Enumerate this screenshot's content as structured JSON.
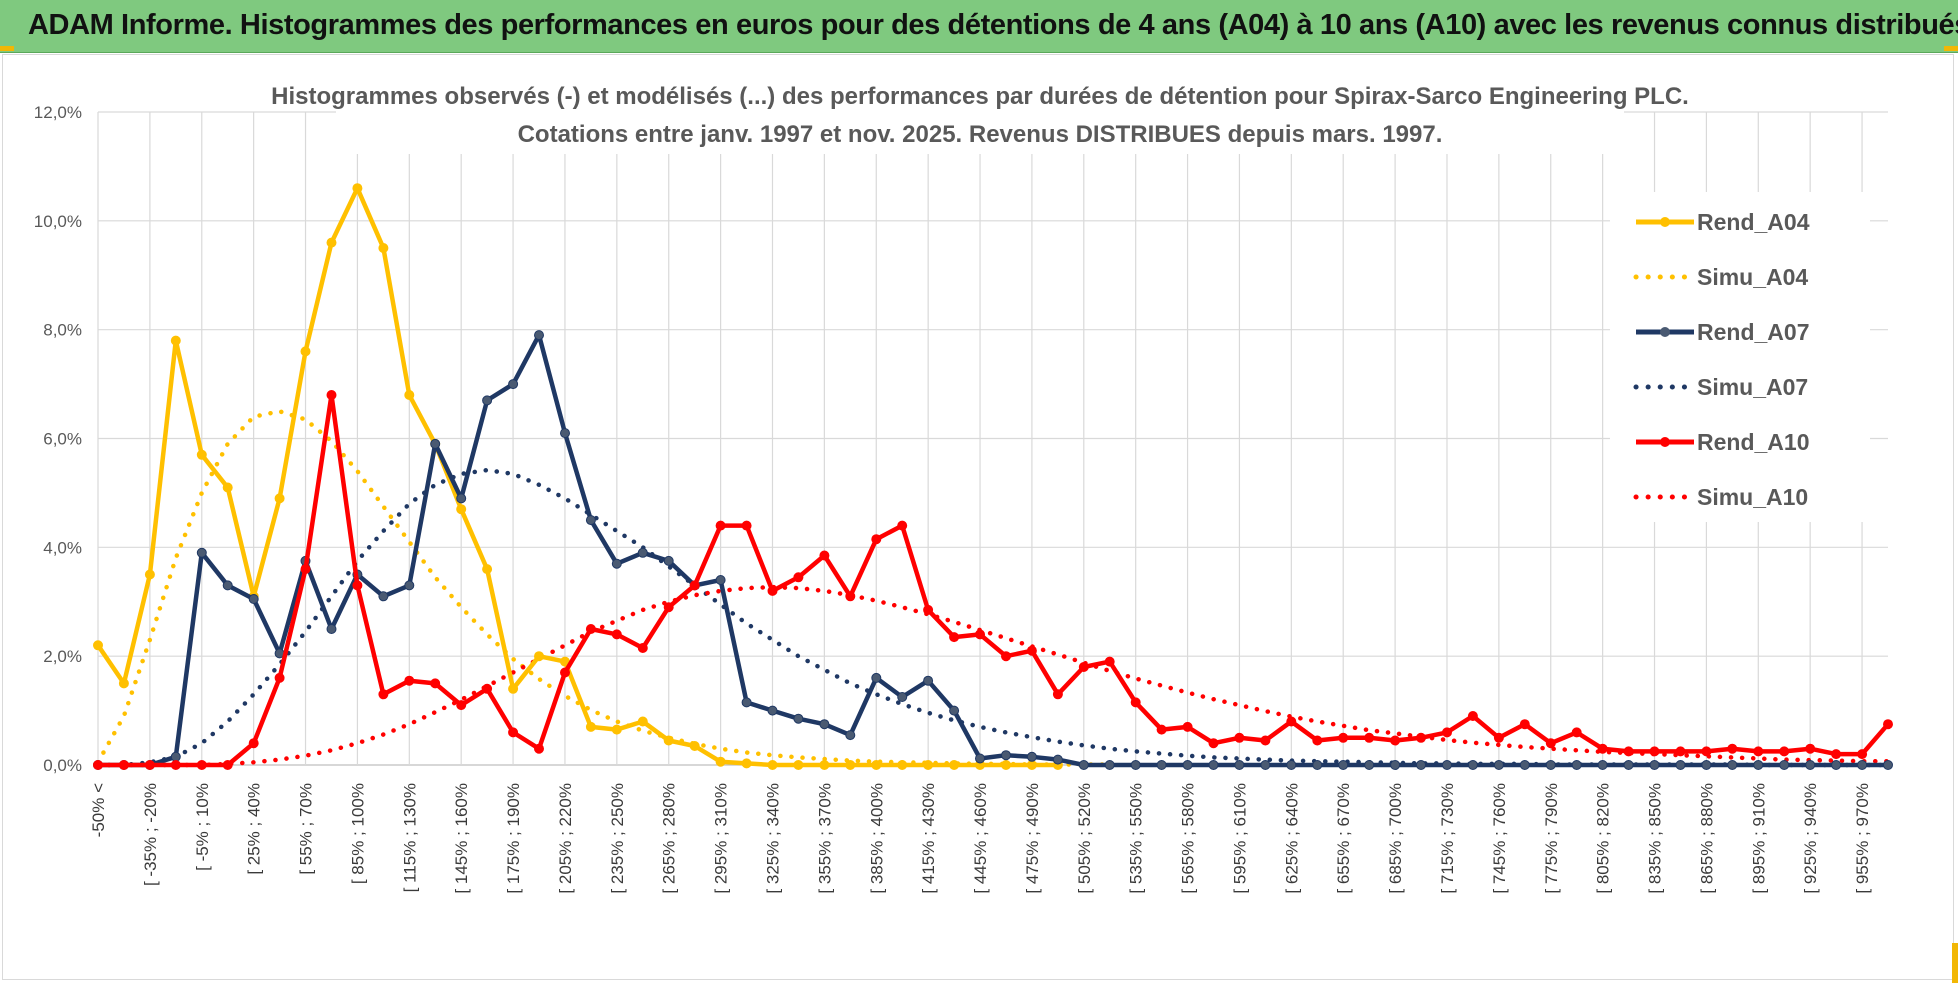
{
  "header": {
    "title": "ADAM Informe. Histogrammes des performances en euros pour des détentions de 4 ans (A04) à 10 ans (A10) avec les revenus connus distribués"
  },
  "chart_data": {
    "type": "line",
    "title": "Histogrammes observés (-) et modélisés (...) des performances par durées de détention pour Spirax-Sarco Engineering PLC.",
    "subtitle": "Cotations entre janv. 1997 et nov. 2025. Revenus DISTRIBUES depuis mars. 1997.",
    "xlabel": "",
    "ylabel": "",
    "ylim": [
      0,
      12
    ],
    "y_ticks": [
      "0,0%",
      "2,0%",
      "4,0%",
      "6,0%",
      "8,0%",
      "10,0%",
      "12,0%"
    ],
    "legend_position": "right",
    "x_labels": [
      "-50% <",
      "[ -35% ; -20%",
      "[ -5% ; 10%",
      "[ 25% ; 40%",
      "[ 55% ; 70%",
      "[ 85% ; 100%",
      "[ 115% ; 130%",
      "[ 145% ; 160%",
      "[ 175% ; 190%",
      "[ 205% ; 220%",
      "[ 235% ; 250%",
      "[ 265% ; 280%",
      "[ 295% ; 310%",
      "[ 325% ; 340%",
      "[ 355% ; 370%",
      "[ 385% ; 400%",
      "[ 415% ; 430%",
      "[ 445% ; 460%",
      "[ 475% ; 490%",
      "[ 505% ; 520%",
      "[ 535% ; 550%",
      "[ 565% ; 580%",
      "[ 595% ; 610%",
      "[ 625% ; 640%",
      "[ 655% ; 670%",
      "[ 685% ; 700%",
      "[ 715% ; 730%",
      "[ 745% ; 760%",
      "[ 775% ; 790%",
      "[ 805% ; 820%",
      "[ 835% ; 850%",
      "[ 865% ; 880%",
      "[ 895% ; 910%",
      "[ 925% ; 940%",
      "[ 955% ; 970%"
    ],
    "series": [
      {
        "name": "Rend_A04",
        "style": "solid",
        "color": "#ffc000",
        "values": [
          2.2,
          1.5,
          3.5,
          7.8,
          5.7,
          5.1,
          3.1,
          4.9,
          7.6,
          9.6,
          10.6,
          9.5,
          6.8,
          5.9,
          4.7,
          3.6,
          1.4,
          2.0,
          1.9,
          0.7,
          0.65,
          0.8,
          0.45,
          0.35,
          0.06,
          0.03,
          0.0,
          0.0,
          0.0,
          0.0,
          0.0,
          0.0,
          0.0,
          0.0,
          0.0,
          0.0,
          0.0,
          0.0
        ]
      },
      {
        "name": "Simu_A04",
        "style": "dotted",
        "color": "#ffc000",
        "values": [
          0.05,
          0.9,
          2.3,
          3.8,
          5.0,
          5.9,
          6.4,
          6.5,
          6.35,
          5.95,
          5.4,
          4.75,
          4.1,
          3.45,
          2.9,
          2.4,
          1.95,
          1.58,
          1.27,
          1.01,
          0.8,
          0.63,
          0.5,
          0.39,
          0.3,
          0.23,
          0.18,
          0.14,
          0.11,
          0.08,
          0.06,
          0.05,
          0.04,
          0.03,
          0.02,
          0.02,
          0.01,
          0.01,
          0.01,
          0.01
        ]
      },
      {
        "name": "Rend_A07",
        "style": "solid",
        "color": "#1f3864",
        "values": [
          0.0,
          0.0,
          0.0,
          0.15,
          3.9,
          3.3,
          3.05,
          2.05,
          3.75,
          2.5,
          3.5,
          3.1,
          3.3,
          5.9,
          4.9,
          6.7,
          7.0,
          7.9,
          6.1,
          4.5,
          3.7,
          3.9,
          3.75,
          3.3,
          3.4,
          1.15,
          1.0,
          0.85,
          0.75,
          0.55,
          1.6,
          1.25,
          1.55,
          1.0,
          0.12,
          0.18,
          0.15,
          0.1,
          0.0,
          0.0,
          0.0,
          0.0,
          0.0,
          0.0,
          0.0,
          0.0,
          0.0,
          0.0,
          0.0,
          0.0,
          0.0,
          0.0,
          0.0,
          0.0,
          0.0,
          0.0,
          0.0,
          0.0,
          0.0,
          0.0,
          0.0,
          0.0,
          0.0,
          0.0,
          0.0,
          0.0,
          0.0,
          0.0,
          0.0,
          0.0
        ]
      },
      {
        "name": "Simu_A07",
        "style": "dotted",
        "color": "#1f3864",
        "values": [
          0.0,
          0.0,
          0.05,
          0.15,
          0.4,
          0.8,
          1.3,
          1.85,
          2.45,
          3.1,
          3.75,
          4.3,
          4.8,
          5.15,
          5.35,
          5.42,
          5.35,
          5.15,
          4.9,
          4.6,
          4.3,
          4.0,
          3.65,
          3.3,
          2.95,
          2.6,
          2.3,
          2.0,
          1.75,
          1.5,
          1.3,
          1.12,
          0.96,
          0.82,
          0.7,
          0.6,
          0.51,
          0.43,
          0.36,
          0.3,
          0.25,
          0.21,
          0.17,
          0.14,
          0.12,
          0.1,
          0.08,
          0.07,
          0.06,
          0.05,
          0.04,
          0.03,
          0.03,
          0.02,
          0.02,
          0.02,
          0.01,
          0.01,
          0.01,
          0.01,
          0.01,
          0.01,
          0.01,
          0.01,
          0.0,
          0.0,
          0.0,
          0.0,
          0.0,
          0.0
        ]
      },
      {
        "name": "Rend_A10",
        "style": "solid",
        "color": "#ff0000",
        "values": [
          0.0,
          0.0,
          0.0,
          0.0,
          0.0,
          0.0,
          0.4,
          1.6,
          3.6,
          6.8,
          3.3,
          1.3,
          1.55,
          1.5,
          1.1,
          1.4,
          0.6,
          0.3,
          1.7,
          2.5,
          2.4,
          2.15,
          2.9,
          3.3,
          4.4,
          4.4,
          3.2,
          3.45,
          3.85,
          3.1,
          4.15,
          4.4,
          2.85,
          2.35,
          2.4,
          2.0,
          2.1,
          1.3,
          1.8,
          1.9,
          1.15,
          0.65,
          0.7,
          0.4,
          0.5,
          0.45,
          0.8,
          0.45,
          0.5,
          0.5,
          0.45,
          0.5,
          0.6,
          0.9,
          0.5,
          0.75,
          0.4,
          0.6,
          0.3,
          0.25,
          0.25,
          0.25,
          0.25,
          0.3,
          0.25,
          0.25,
          0.3,
          0.2,
          0.2,
          0.75
        ]
      },
      {
        "name": "Simu_A10",
        "style": "dotted",
        "color": "#ff0000",
        "values": [
          0.0,
          0.0,
          0.0,
          0.0,
          0.0,
          0.02,
          0.05,
          0.1,
          0.17,
          0.27,
          0.4,
          0.56,
          0.75,
          0.97,
          1.2,
          1.45,
          1.7,
          1.95,
          2.2,
          2.45,
          2.65,
          2.85,
          3.0,
          3.12,
          3.2,
          3.25,
          3.27,
          3.25,
          3.2,
          3.12,
          3.02,
          2.9,
          2.77,
          2.63,
          2.48,
          2.33,
          2.18,
          2.03,
          1.88,
          1.73,
          1.59,
          1.46,
          1.33,
          1.21,
          1.1,
          0.99,
          0.89,
          0.8,
          0.72,
          0.64,
          0.58,
          0.52,
          0.46,
          0.41,
          0.37,
          0.33,
          0.3,
          0.27,
          0.24,
          0.22,
          0.2,
          0.18,
          0.16,
          0.14,
          0.12,
          0.1,
          0.09,
          0.08,
          0.07,
          0.07
        ]
      }
    ]
  }
}
